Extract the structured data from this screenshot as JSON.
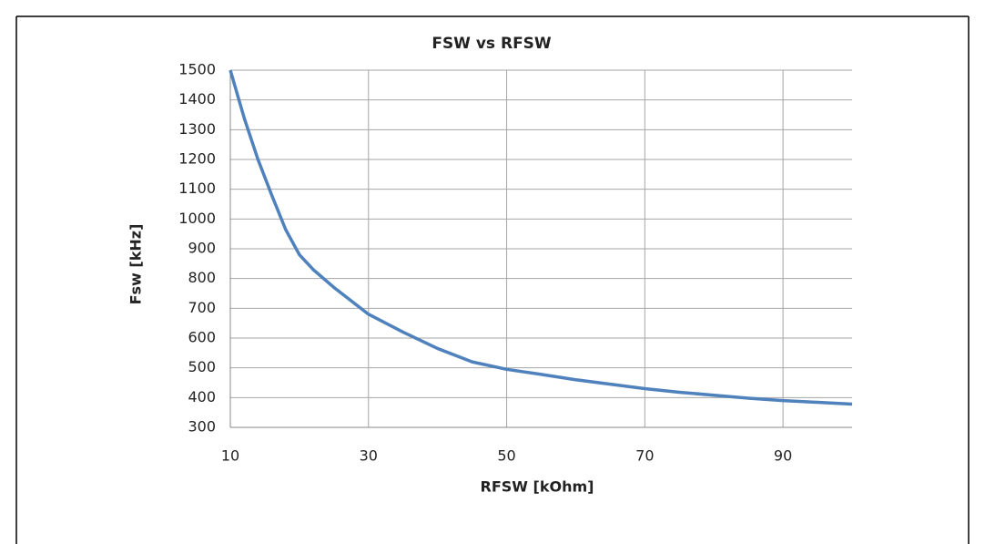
{
  "chart_data": {
    "type": "line",
    "title": "FSW vs RFSW",
    "x_label": "RFSW [kOhm]",
    "y_label": "Fsw [kHz]",
    "x": [
      10,
      12,
      14,
      16,
      18,
      20,
      22,
      25,
      30,
      35,
      40,
      45,
      50,
      55,
      60,
      65,
      70,
      75,
      80,
      85,
      90,
      95,
      100
    ],
    "series": [
      {
        "name": "FSW",
        "color": "#4f81bd",
        "values": [
          1500,
          1340,
          1200,
          1080,
          965,
          880,
          830,
          770,
          680,
          620,
          565,
          520,
          495,
          478,
          460,
          445,
          430,
          418,
          408,
          398,
          390,
          384,
          378
        ]
      }
    ],
    "xlim": [
      10,
      100
    ],
    "xticks": [
      10,
      30,
      50,
      70,
      90
    ],
    "ylim": [
      300,
      1500
    ],
    "yticks": [
      300,
      400,
      500,
      600,
      700,
      800,
      900,
      1000,
      1100,
      1200,
      1300,
      1400,
      1500
    ],
    "grid": true
  }
}
